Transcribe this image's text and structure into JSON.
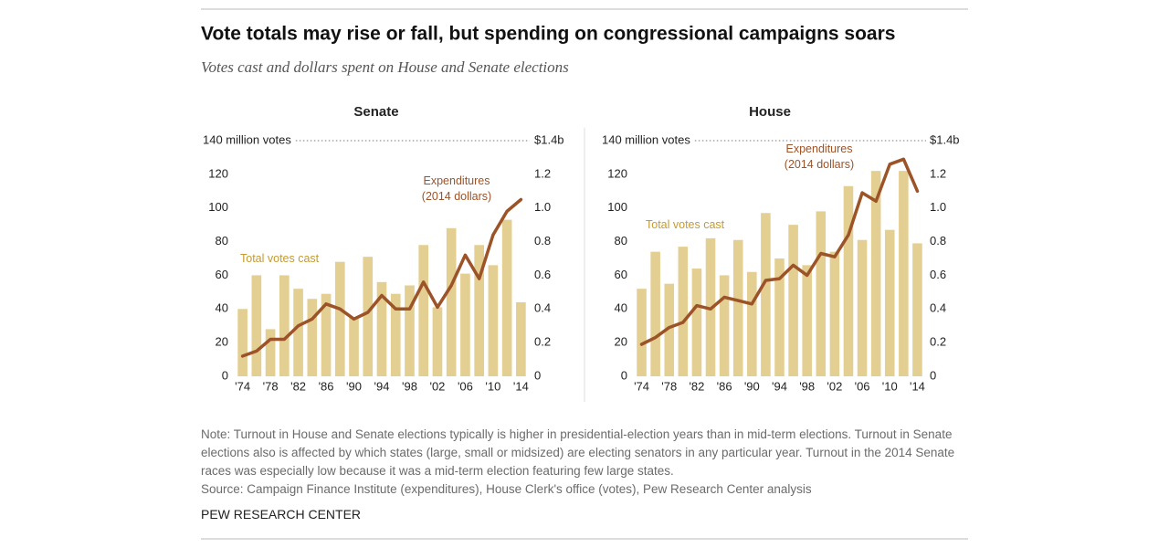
{
  "header": {
    "title": "Vote totals may rise or fall, but spending on congressional campaigns soars",
    "subtitle": "Votes cast and dollars spent on House and Senate elections"
  },
  "chart_data": [
    {
      "type": "bar_line",
      "title": "Senate",
      "categories": [
        "'74",
        null,
        "'78",
        null,
        "'82",
        null,
        "'86",
        null,
        "'90",
        null,
        "'94",
        null,
        "'98",
        null,
        "'02",
        null,
        "'06",
        null,
        "'10",
        null,
        "'14"
      ],
      "series": [
        {
          "name": "Total votes cast",
          "type": "bar",
          "color": "#e4cf92",
          "values": [
            40,
            60,
            28,
            60,
            52,
            46,
            49,
            68,
            35,
            71,
            56,
            49,
            54,
            78,
            41,
            88,
            61,
            78,
            66,
            93,
            44
          ]
        },
        {
          "name": "Expenditures (2014 dollars)",
          "type": "line",
          "axis": "y2",
          "color": "#9c5328",
          "values": [
            0.12,
            0.15,
            0.22,
            0.22,
            0.3,
            0.34,
            0.43,
            0.4,
            0.34,
            0.38,
            0.48,
            0.4,
            0.4,
            0.56,
            0.41,
            0.54,
            0.72,
            0.58,
            0.84,
            0.98,
            1.05
          ]
        }
      ],
      "ylim": [
        0,
        140
      ],
      "yticks": [
        0,
        20,
        40,
        60,
        80,
        100,
        120,
        {
          "value": 140,
          "label": "140 million votes"
        }
      ],
      "y2lim": [
        0,
        1.4
      ],
      "y2ticks": [
        0,
        0.2,
        0.4,
        0.6,
        0.8,
        {
          "value": 1,
          "label": "1.0"
        },
        1.2,
        {
          "value": 1.4,
          "label": "$1.4b"
        }
      ]
    },
    {
      "type": "bar_line",
      "title": "House",
      "categories": [
        "'74",
        null,
        "'78",
        null,
        "'82",
        null,
        "'86",
        null,
        "'90",
        null,
        "'94",
        null,
        "'98",
        null,
        "'02",
        null,
        "'06",
        null,
        "'10",
        null,
        "'14"
      ],
      "series": [
        {
          "name": "Total votes cast",
          "type": "bar",
          "color": "#e4cf92",
          "values": [
            52,
            74,
            55,
            77,
            64,
            82,
            60,
            81,
            62,
            97,
            70,
            90,
            66,
            98,
            74,
            113,
            81,
            122,
            87,
            122,
            79
          ]
        },
        {
          "name": "Expenditures (2014 dollars)",
          "type": "line",
          "axis": "y2",
          "color": "#9c5328",
          "values": [
            0.19,
            0.23,
            0.29,
            0.32,
            0.42,
            0.4,
            0.47,
            0.45,
            0.43,
            0.57,
            0.58,
            0.66,
            0.6,
            0.73,
            0.71,
            0.84,
            1.09,
            1.04,
            1.26,
            1.29,
            1.1
          ]
        }
      ],
      "ylim": [
        0,
        140
      ],
      "yticks": [
        0,
        20,
        40,
        60,
        80,
        100,
        120,
        {
          "value": 140,
          "label": "140 million votes"
        }
      ],
      "y2lim": [
        0,
        1.4
      ],
      "y2ticks": [
        0,
        0.2,
        0.4,
        0.6,
        0.8,
        {
          "value": 1,
          "label": "1.0"
        },
        1.2,
        {
          "value": 1.4,
          "label": "$1.4b"
        }
      ]
    }
  ],
  "footer": {
    "note": "Note: Turnout in House and Senate elections typically is higher in presidential-election years than in mid-term elections. Turnout in Senate elections also is affected by which states (large, small or midsized) are electing senators in any particular year. Turnout in the 2014 Senate races was especially low because it was a mid-term election featuring few large states.",
    "source": "Source: Campaign Finance Institute (expenditures), House Clerk's office (votes), Pew Research Center analysis",
    "brand": "PEW RESEARCH CENTER"
  }
}
